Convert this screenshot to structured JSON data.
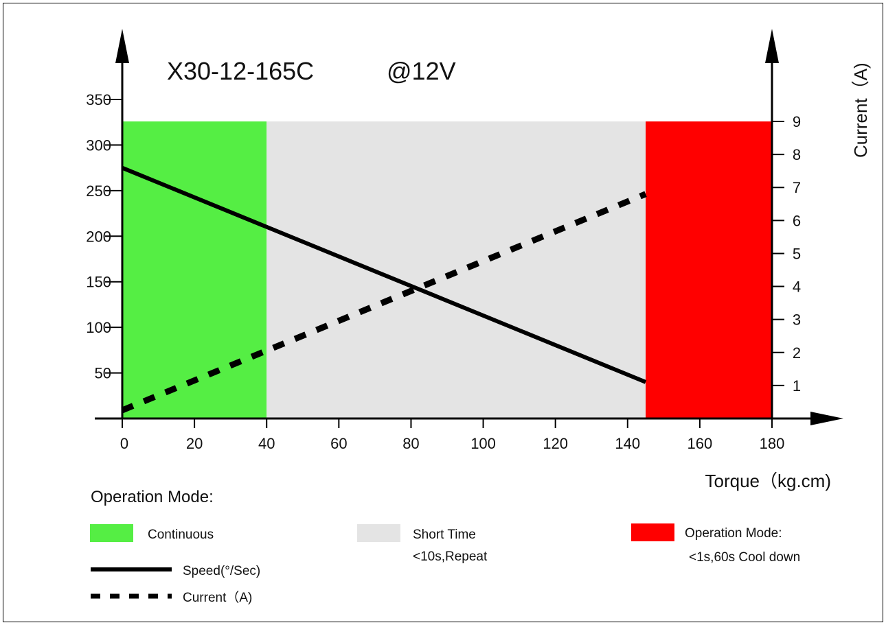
{
  "chart_data": {
    "type": "line",
    "title": "X30-12-165C",
    "subtitle": "@12V",
    "xlabel": "Torque（kg.cm)",
    "ylabel": "",
    "y2label": "Current（A)",
    "xlim": [
      0,
      180
    ],
    "ylim": [
      0,
      350
    ],
    "y2lim": [
      0,
      9
    ],
    "x_ticks": [
      0,
      20,
      40,
      60,
      80,
      100,
      120,
      140,
      160,
      180
    ],
    "y_ticks": [
      50,
      100,
      150,
      200,
      250,
      300,
      350
    ],
    "y2_ticks": [
      1,
      2,
      3,
      4,
      5,
      6,
      7,
      8,
      9
    ],
    "grid": false,
    "regions": [
      {
        "name": "Continuous",
        "x_start": 0,
        "x_end": 40,
        "color": "#55ee44"
      },
      {
        "name": "Short Time",
        "x_start": 40,
        "x_end": 145,
        "color": "#e4e4e4"
      },
      {
        "name": "Operation Mode:",
        "x_start": 145,
        "x_end": 180,
        "color": "#ff0000"
      }
    ],
    "region_top_y2": 9,
    "series": [
      {
        "name": "Speed(°/Sec)",
        "axis": "left",
        "style": "solid",
        "x": [
          0,
          145
        ],
        "y": [
          275,
          40
        ]
      },
      {
        "name": "Current（A)",
        "axis": "right",
        "style": "dashed",
        "x": [
          0,
          145
        ],
        "y": [
          0.25,
          6.8
        ]
      }
    ]
  },
  "legend": {
    "heading": "Operation Mode:",
    "continuous": "Continuous",
    "short_time": "Short Time",
    "short_time_note": "<10s,Repeat",
    "operation": "Operation Mode:",
    "operation_note": "<1s,60s Cool down",
    "speed": "Speed(°/Sec)",
    "current": "Current（A)"
  },
  "colors": {
    "continuous": "#55ee44",
    "short_time": "#e4e4e4",
    "operation": "#ff0000",
    "line": "#000000"
  }
}
